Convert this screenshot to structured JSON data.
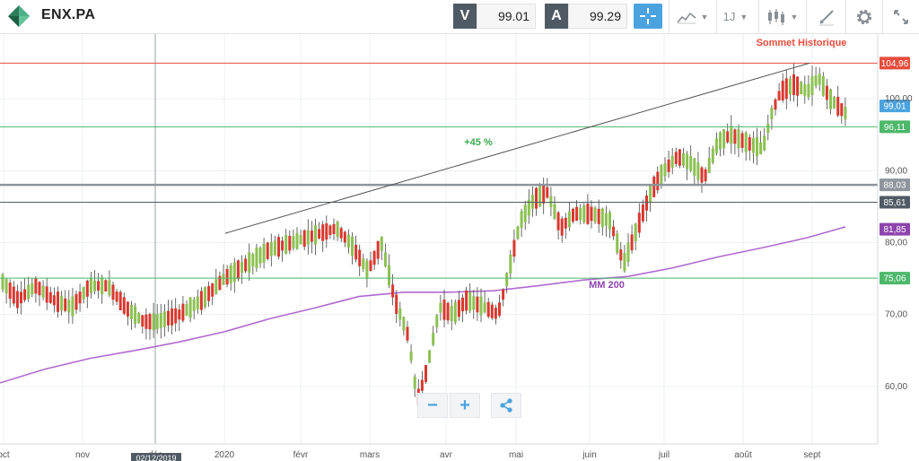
{
  "toolbar": {
    "ticker": "ENX.PA",
    "bid_label": "V",
    "bid_value": "99.01",
    "ask_label": "A",
    "ask_value": "99.29",
    "period_label": "1J",
    "icons": [
      "logo-icon",
      "crosshair-icon",
      "chart-type-icon",
      "period-icon",
      "candlestick-icon",
      "drawing-icon",
      "gear-icon",
      "fullscreen-icon"
    ],
    "accent_color": "#4aa3df"
  },
  "zoom": {
    "minus": "−",
    "plus": "+"
  },
  "chart_data": {
    "type": "candlestick",
    "x_ticks": [
      "oct",
      "nov",
      "déc",
      "2020",
      "févr",
      "mars",
      "avr",
      "mai",
      "juin",
      "juil",
      "août",
      "sept"
    ],
    "crosshair_date": "02/12/2019",
    "y_ticks": [
      "60,00",
      "70,00",
      "80,00",
      "90,00",
      "100,00"
    ],
    "ylim": [
      52,
      109
    ],
    "grid": true,
    "colors": {
      "up": "#8cc152",
      "down": "#d9382f",
      "mm200": "#b06ad0",
      "support": "#4cb86a",
      "resistance": "#e74c3c",
      "trend": "#555555",
      "level_gray": "#8e959c"
    },
    "horizontal_levels": [
      {
        "value": 104.96,
        "label": "104,96",
        "color": "#e74c3c"
      },
      {
        "value": 99.01,
        "label": "99,01",
        "color": "#4aa3df"
      },
      {
        "value": 96.11,
        "label": "96,11",
        "color": "#4cb86a"
      },
      {
        "value": 88.03,
        "label": "88,03",
        "color": "#8e959c"
      },
      {
        "value": 85.61,
        "label": "85,61",
        "color": "#505a64"
      },
      {
        "value": 81.85,
        "label": "81,85",
        "color": "#8e44ad"
      },
      {
        "value": 75.06,
        "label": "75,06",
        "color": "#4cb86a"
      }
    ],
    "annotations": [
      {
        "text": "Sommet Historique",
        "color": "#e74c3c"
      },
      {
        "text": "+45 %",
        "color": "#3aa84e"
      },
      {
        "text": "MM 200",
        "color": "#8e44ad"
      }
    ],
    "series": [
      {
        "name": "MM 200",
        "x": [
          0,
          50,
          100,
          150,
          200,
          250,
          300,
          350,
          400,
          450,
          500,
          550,
          600,
          650,
          700,
          750,
          800,
          850,
          900,
          942
        ],
        "y": [
          60.5,
          62.4,
          63.9,
          65.0,
          66.2,
          67.6,
          69.4,
          70.9,
          72.5,
          73.1,
          73.1,
          73.3,
          74.0,
          74.8,
          75.3,
          76.5,
          78.0,
          79.3,
          80.7,
          82.2
        ]
      },
      {
        "name": "price",
        "x": [
          0,
          20,
          40,
          60,
          80,
          100,
          120,
          140,
          160,
          175,
          200,
          225,
          250,
          275,
          300,
          325,
          350,
          375,
          390,
          410,
          425,
          440,
          455,
          465,
          475,
          490,
          505,
          520,
          540,
          555,
          565,
          580,
          595,
          610,
          625,
          640,
          660,
          680,
          695,
          710,
          725,
          740,
          755,
          770,
          785,
          800,
          815,
          830,
          850,
          860,
          870,
          885,
          900,
          912,
          925,
          942
        ],
        "y": [
          75,
          72,
          74,
          72,
          71,
          74,
          74,
          71,
          69,
          69,
          70,
          72,
          75,
          77,
          79,
          80,
          81,
          82,
          80,
          76,
          80,
          72,
          67,
          58,
          62,
          71,
          70,
          72,
          71,
          70,
          75,
          83,
          86,
          87,
          82,
          84,
          84,
          83,
          77,
          82,
          87,
          90,
          92,
          91,
          89,
          94,
          95,
          94,
          93,
          98,
          101,
          102,
          101,
          103,
          100,
          98
        ]
      }
    ]
  }
}
